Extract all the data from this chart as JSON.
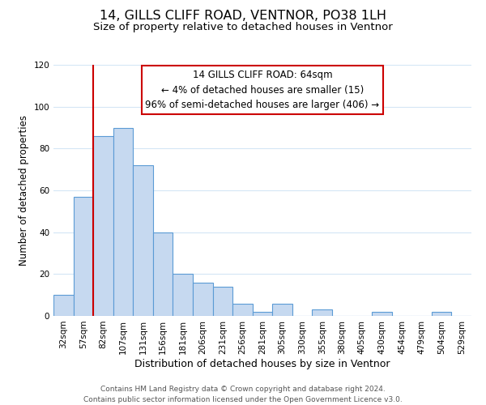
{
  "title": "14, GILLS CLIFF ROAD, VENTNOR, PO38 1LH",
  "subtitle": "Size of property relative to detached houses in Ventnor",
  "xlabel": "Distribution of detached houses by size in Ventnor",
  "ylabel": "Number of detached properties",
  "bar_labels": [
    "32sqm",
    "57sqm",
    "82sqm",
    "107sqm",
    "131sqm",
    "156sqm",
    "181sqm",
    "206sqm",
    "231sqm",
    "256sqm",
    "281sqm",
    "305sqm",
    "330sqm",
    "355sqm",
    "380sqm",
    "405sqm",
    "430sqm",
    "454sqm",
    "479sqm",
    "504sqm",
    "529sqm"
  ],
  "bar_values": [
    10,
    57,
    86,
    90,
    72,
    40,
    20,
    16,
    14,
    6,
    2,
    6,
    0,
    3,
    0,
    0,
    2,
    0,
    0,
    2,
    0
  ],
  "bar_color": "#c6d9f0",
  "bar_edge_color": "#5b9bd5",
  "vline_color": "#cc0000",
  "vline_x_offset": 1.5,
  "annotation_title": "14 GILLS CLIFF ROAD: 64sqm",
  "annotation_line1": "← 4% of detached houses are smaller (15)",
  "annotation_line2": "96% of semi-detached houses are larger (406) →",
  "annotation_box_edge": "#cc0000",
  "annotation_box_face": "#ffffff",
  "ylim": [
    0,
    120
  ],
  "yticks": [
    0,
    20,
    40,
    60,
    80,
    100,
    120
  ],
  "footer_line1": "Contains HM Land Registry data © Crown copyright and database right 2024.",
  "footer_line2": "Contains public sector information licensed under the Open Government Licence v3.0.",
  "background_color": "#ffffff",
  "grid_color": "#d4e6f5",
  "title_fontsize": 11.5,
  "subtitle_fontsize": 9.5,
  "xlabel_fontsize": 9,
  "ylabel_fontsize": 8.5,
  "tick_fontsize": 7.5,
  "annotation_fontsize": 8.5,
  "footer_fontsize": 6.5
}
